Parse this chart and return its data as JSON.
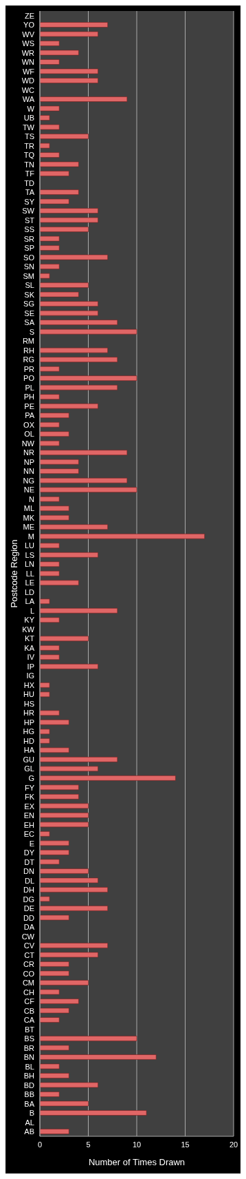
{
  "chart_data": {
    "type": "bar",
    "orientation": "horizontal",
    "xlabel": "Number of Times Drawn",
    "ylabel": "Postcode Region",
    "categories": [
      "ZE",
      "YO",
      "WV",
      "WS",
      "WR",
      "WN",
      "WF",
      "WD",
      "WC",
      "WA",
      "W",
      "UB",
      "TW",
      "TS",
      "TR",
      "TQ",
      "TN",
      "TF",
      "TD",
      "TA",
      "SY",
      "SW",
      "ST",
      "SS",
      "SR",
      "SP",
      "SO",
      "SN",
      "SM",
      "SL",
      "SK",
      "SG",
      "SE",
      "SA",
      "S",
      "RM",
      "RH",
      "RG",
      "PR",
      "PO",
      "PL",
      "PH",
      "PE",
      "PA",
      "OX",
      "OL",
      "NW",
      "NR",
      "NP",
      "NN",
      "NG",
      "NE",
      "N",
      "ML",
      "MK",
      "ME",
      "M",
      "LU",
      "LS",
      "LN",
      "LL",
      "LE",
      "LD",
      "LA",
      "L",
      "KY",
      "KW",
      "KT",
      "KA",
      "IV",
      "IP",
      "IG",
      "HX",
      "HU",
      "HS",
      "HR",
      "HP",
      "HG",
      "HD",
      "HA",
      "GU",
      "GL",
      "G",
      "FY",
      "FK",
      "EX",
      "EN",
      "EH",
      "EC",
      "E",
      "DY",
      "DT",
      "DN",
      "DL",
      "DH",
      "DG",
      "DE",
      "DD",
      "DA",
      "CW",
      "CV",
      "CT",
      "CR",
      "CO",
      "CM",
      "CH",
      "CF",
      "CB",
      "CA",
      "BT",
      "BS",
      "BR",
      "BN",
      "BL",
      "BH",
      "BD",
      "BB",
      "BA",
      "B",
      "AL",
      "AB"
    ],
    "values": [
      0,
      7,
      6,
      2,
      4,
      2,
      6,
      6,
      0,
      9,
      2,
      1,
      2,
      5,
      1,
      2,
      4,
      3,
      0,
      4,
      3,
      6,
      6,
      5,
      2,
      2,
      7,
      2,
      1,
      5,
      4,
      6,
      6,
      8,
      10,
      0,
      7,
      8,
      2,
      10,
      8,
      2,
      6,
      3,
      2,
      3,
      2,
      9,
      4,
      4,
      9,
      10,
      2,
      3,
      3,
      7,
      17,
      2,
      6,
      2,
      2,
      4,
      0,
      1,
      8,
      2,
      0,
      5,
      2,
      2,
      6,
      0,
      1,
      1,
      0,
      2,
      3,
      1,
      1,
      3,
      8,
      6,
      14,
      4,
      4,
      5,
      5,
      5,
      1,
      3,
      3,
      2,
      5,
      6,
      7,
      1,
      7,
      3,
      0,
      0,
      7,
      6,
      3,
      3,
      5,
      2,
      4,
      3,
      2,
      0,
      10,
      3,
      12,
      2,
      3,
      6,
      2,
      5,
      11,
      0,
      3
    ],
    "color": "#e06666",
    "xlim": [
      0,
      20
    ],
    "xticks": [
      0,
      5,
      10,
      15,
      20
    ],
    "grid": "x"
  }
}
